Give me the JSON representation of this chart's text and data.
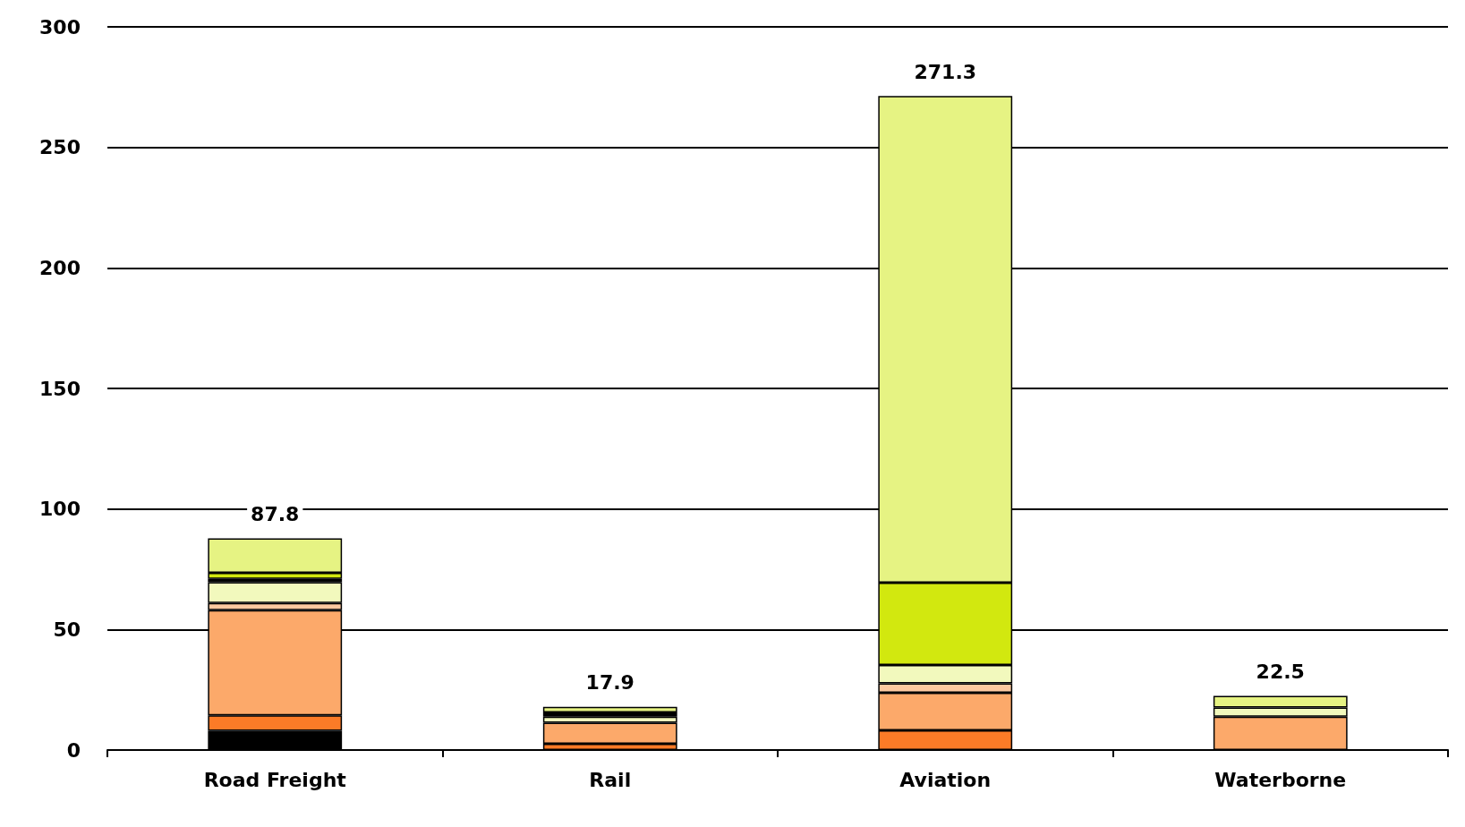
{
  "chart_data": {
    "type": "bar",
    "stacked": true,
    "categories": [
      "Road Freight",
      "Rail",
      "Aviation",
      "Waterborne"
    ],
    "series": [
      {
        "color": "#000000",
        "values": [
          8,
          null,
          null,
          null
        ]
      },
      {
        "color": "#fb7b27",
        "values": [
          6.4,
          2.6,
          8.2,
          null
        ]
      },
      {
        "color": "#fca96a",
        "values": [
          43.6,
          8.7,
          15.6,
          13.8
        ]
      },
      {
        "color": "#fdc9a0",
        "values": [
          3,
          null,
          3.9,
          null
        ]
      },
      {
        "color": "#f2f9bd",
        "values": [
          8.6,
          2.5,
          7.6,
          3.8
        ]
      },
      {
        "color": "#000000",
        "values": [
          1.4,
          1.8,
          null,
          null
        ]
      },
      {
        "color": "#d2e80f",
        "values": [
          2.5,
          null,
          34.1,
          null
        ]
      },
      {
        "color": "#e6f383",
        "values": [
          14.3,
          2.3,
          201.9,
          4.9
        ]
      }
    ],
    "totals": [
      "87.8",
      "17.9",
      "271.3",
      "22.5"
    ],
    "ylim": [
      0,
      300
    ],
    "yticks": [
      0,
      50,
      100,
      150,
      200,
      250,
      300
    ],
    "grid": "y"
  }
}
